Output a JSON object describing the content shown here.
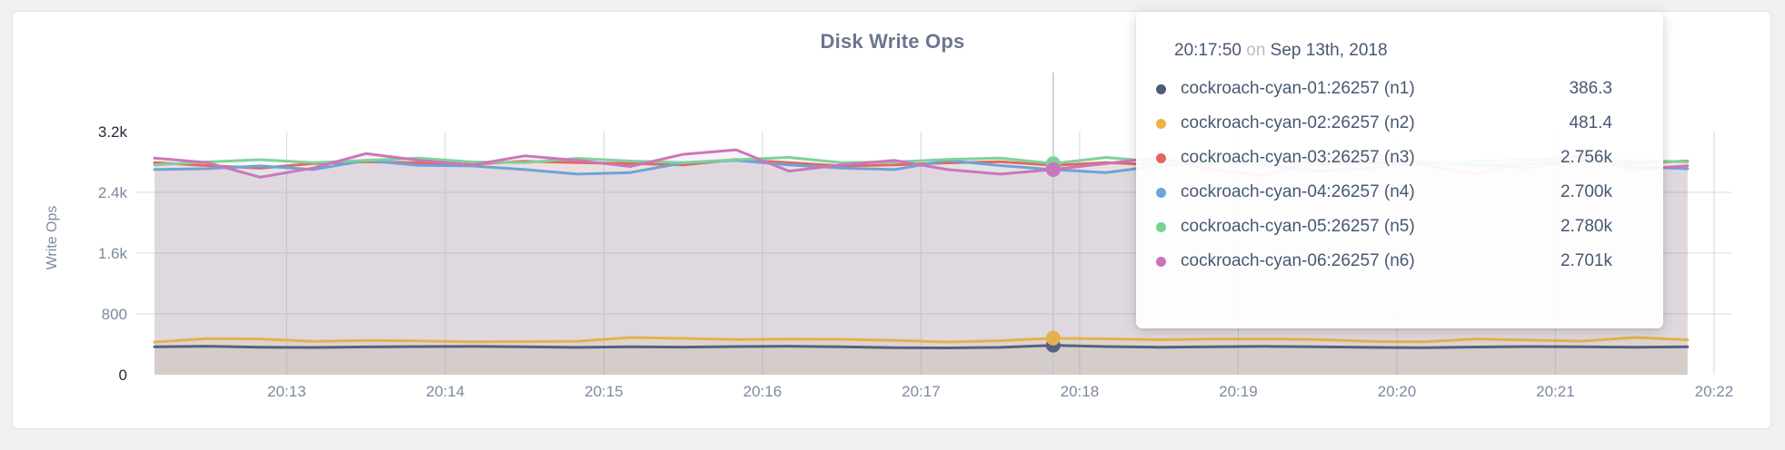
{
  "chart": {
    "title": "Disk Write Ops"
  },
  "chart_data": {
    "type": "line",
    "title": "Disk Write Ops",
    "xlabel": "",
    "ylabel": "Write Ops",
    "ylim": [
      0,
      3200
    ],
    "grid": true,
    "legend_position": "tooltip",
    "x_start": "20:12:10",
    "x_step_seconds": 20,
    "x_ticks": [
      "20:13",
      "20:14",
      "20:15",
      "20:16",
      "20:17",
      "20:18",
      "20:19",
      "20:20",
      "20:21",
      "20:22"
    ],
    "y_ticks": [
      {
        "value": 0,
        "label": "0",
        "emphasis": true,
        "grid": false
      },
      {
        "value": 800,
        "label": "800",
        "emphasis": false,
        "grid": true
      },
      {
        "value": 1600,
        "label": "1.6k",
        "emphasis": false,
        "grid": true
      },
      {
        "value": 2400,
        "label": "2.4k",
        "emphasis": false,
        "grid": true
      },
      {
        "value": 3200,
        "label": "3.2k",
        "emphasis": true,
        "grid": false
      }
    ],
    "hover_time": "20:17:50",
    "series": [
      {
        "name": "cockroach-cyan-01:26257 (n1)",
        "color": "#56617f",
        "fill_opacity": 0.08,
        "values": [
          368,
          375,
          362,
          358,
          365,
          370,
          372,
          366,
          360,
          368,
          363,
          370,
          375,
          368,
          355,
          352,
          360,
          386.3,
          370,
          362,
          366,
          372,
          368,
          360,
          356,
          364,
          370,
          366,
          362,
          368
        ]
      },
      {
        "name": "cockroach-cyan-02:26257 (n2)",
        "color": "#e3b24e",
        "fill_opacity": 0.09,
        "values": [
          430,
          475,
          470,
          438,
          450,
          445,
          432,
          436,
          440,
          490,
          478,
          462,
          468,
          466,
          452,
          430,
          448,
          481.4,
          472,
          460,
          468,
          470,
          462,
          438,
          432,
          470,
          455,
          442,
          490,
          460
        ]
      },
      {
        "name": "cockroach-cyan-03:26257 (n3)",
        "color": "#e16a5f",
        "fill_opacity": 0.1,
        "values": [
          2790,
          2752,
          2718,
          2780,
          2802,
          2788,
          2770,
          2810,
          2790,
          2778,
          2760,
          2832,
          2790,
          2748,
          2760,
          2788,
          2802,
          2756,
          2790,
          2762,
          2780,
          2820,
          2766,
          2790,
          2802,
          2758,
          2774,
          2800,
          2788,
          2812
        ]
      },
      {
        "name": "cockroach-cyan-04:26257 (n4)",
        "color": "#70a2d7",
        "fill_opacity": 0.1,
        "values": [
          2700,
          2712,
          2748,
          2700,
          2820,
          2756,
          2748,
          2700,
          2640,
          2660,
          2788,
          2822,
          2760,
          2720,
          2700,
          2820,
          2752,
          2700,
          2660,
          2750,
          2800,
          2766,
          2680,
          2720,
          2786,
          2760,
          2720,
          2830,
          2740,
          2710
        ]
      },
      {
        "name": "cockroach-cyan-05:26257 (n5)",
        "color": "#7fd19c",
        "fill_opacity": 0.1,
        "values": [
          2760,
          2800,
          2830,
          2790,
          2820,
          2850,
          2800,
          2790,
          2848,
          2812,
          2790,
          2830,
          2860,
          2790,
          2800,
          2832,
          2850,
          2780,
          2860,
          2800,
          2790,
          2828,
          2800,
          2846,
          2790,
          2810,
          2836,
          2790,
          2820,
          2800
        ]
      },
      {
        "name": "cockroach-cyan-06:26257 (n6)",
        "color": "#cb76ba",
        "fill_opacity": 0.1,
        "values": [
          2850,
          2790,
          2600,
          2720,
          2910,
          2820,
          2760,
          2880,
          2820,
          2740,
          2900,
          2960,
          2680,
          2760,
          2820,
          2700,
          2640,
          2701,
          2780,
          2860,
          2700,
          2620,
          2840,
          2920,
          2760,
          2640,
          2820,
          2880,
          2700,
          2750
        ]
      }
    ]
  },
  "tooltip": {
    "time": "20:17:50",
    "conjunction": "on",
    "date": "Sep 13th, 2018",
    "rows": [
      {
        "name": "cockroach-cyan-01:26257 (n1)",
        "value": "386.3",
        "color": "#4e5b79"
      },
      {
        "name": "cockroach-cyan-02:26257 (n2)",
        "value": "481.4",
        "color": "#ebb440"
      },
      {
        "name": "cockroach-cyan-03:26257 (n3)",
        "value": "2.756k",
        "color": "#e1685f"
      },
      {
        "name": "cockroach-cyan-04:26257 (n4)",
        "value": "2.700k",
        "color": "#6ba3dc"
      },
      {
        "name": "cockroach-cyan-05:26257 (n5)",
        "value": "2.780k",
        "color": "#75d393"
      },
      {
        "name": "cockroach-cyan-06:26257 (n6)",
        "value": "2.701k",
        "color": "#cc74b9"
      }
    ]
  },
  "colors": {
    "page_bg": "#f0f0f1",
    "card_bg": "#ffffff",
    "card_border": "#e3e4e6",
    "grid": "#d8d8dc",
    "crosshair": "#c7c8cd",
    "axis_text": "#7d88a0",
    "axis_text_strong": "#252b3a",
    "title_text": "#6a7690",
    "tooltip_text": "#475872"
  }
}
